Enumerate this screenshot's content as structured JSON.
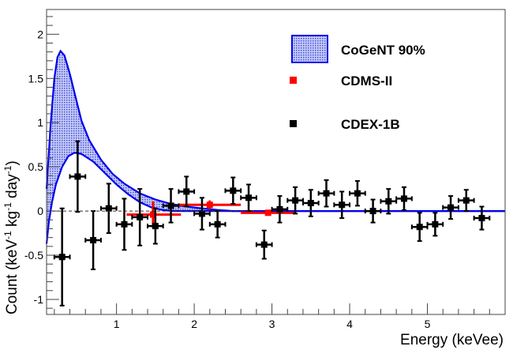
{
  "chart_data": {
    "type": "scatter",
    "title": "",
    "xlabel": "Energy (keVee)",
    "ylabel": "Count (keV-1 kg-1 day-1)",
    "ylabel_parts": {
      "a": "Count (keV",
      "sup1": "-1",
      "b": " kg",
      "sup2": "-1",
      "c": " day",
      "sup3": "-1",
      "d": ")"
    },
    "xlim": [
      0.1,
      6.0
    ],
    "ylim": [
      -1.17,
      2.28
    ],
    "xticks": [
      1,
      2,
      3,
      4,
      5
    ],
    "yticks": [
      -1,
      -0.5,
      0,
      0.5,
      1,
      1.5,
      2
    ],
    "grid": false,
    "legend_placement": "top-right",
    "colors": {
      "cogent": "#0000ee",
      "cdms": "#ff0000",
      "cdex": "#000000"
    },
    "series": [
      {
        "name": "CoGeNT 90%",
        "kind": "band",
        "upper": [
          [
            0.1,
            0.25
          ],
          [
            0.15,
            0.95
          ],
          [
            0.2,
            1.5
          ],
          [
            0.24,
            1.74
          ],
          [
            0.28,
            1.81
          ],
          [
            0.33,
            1.76
          ],
          [
            0.4,
            1.55
          ],
          [
            0.47,
            1.3
          ],
          [
            0.55,
            1.02
          ],
          [
            0.65,
            0.8
          ],
          [
            0.8,
            0.58
          ],
          [
            0.95,
            0.42
          ],
          [
            1.1,
            0.31
          ],
          [
            1.3,
            0.2
          ],
          [
            1.5,
            0.13
          ],
          [
            1.7,
            0.08
          ],
          [
            1.9,
            0.05
          ],
          [
            2.1,
            0.03
          ],
          [
            2.3,
            0.012
          ],
          [
            2.5,
            0.0
          ],
          [
            6.0,
            0.0
          ]
        ],
        "lower": [
          [
            0.1,
            -0.37
          ],
          [
            0.13,
            -0.12
          ],
          [
            0.17,
            0.1
          ],
          [
            0.22,
            0.3
          ],
          [
            0.3,
            0.5
          ],
          [
            0.38,
            0.62
          ],
          [
            0.46,
            0.66
          ],
          [
            0.55,
            0.645
          ],
          [
            0.7,
            0.56
          ],
          [
            0.85,
            0.43
          ],
          [
            1.0,
            0.3
          ],
          [
            1.15,
            0.19
          ],
          [
            1.3,
            0.1
          ],
          [
            1.45,
            0.04
          ],
          [
            1.6,
            0.01
          ],
          [
            1.75,
            0.0
          ],
          [
            6.0,
            0.0
          ]
        ]
      },
      {
        "name": "CDMS-II",
        "kind": "points",
        "points": [
          {
            "x": 1.47,
            "y": -0.04,
            "xlo": 1.13,
            "xhi": 1.83,
            "err": 0.15
          },
          {
            "x": 2.2,
            "y": 0.07,
            "xlo": 1.8,
            "xhi": 2.6,
            "err": 0.05
          },
          {
            "x": 2.95,
            "y": -0.02,
            "xlo": 2.6,
            "xhi": 3.3,
            "err": 0.03
          }
        ]
      },
      {
        "name": "CDEX-1B",
        "kind": "points",
        "xerr": 0.1,
        "points": [
          {
            "x": 0.3,
            "y": -0.52,
            "err": 0.55
          },
          {
            "x": 0.5,
            "y": 0.39,
            "err": 0.4
          },
          {
            "x": 0.7,
            "y": -0.33,
            "err": 0.33
          },
          {
            "x": 0.9,
            "y": 0.03,
            "err": 0.28
          },
          {
            "x": 1.1,
            "y": -0.15,
            "err": 0.29
          },
          {
            "x": 1.3,
            "y": -0.07,
            "err": 0.32
          },
          {
            "x": 1.5,
            "y": -0.17,
            "err": 0.2
          },
          {
            "x": 1.7,
            "y": 0.06,
            "err": 0.19
          },
          {
            "x": 1.9,
            "y": 0.22,
            "err": 0.17
          },
          {
            "x": 2.1,
            "y": -0.03,
            "err": 0.18
          },
          {
            "x": 2.3,
            "y": -0.15,
            "err": 0.15
          },
          {
            "x": 2.5,
            "y": 0.23,
            "err": 0.15
          },
          {
            "x": 2.7,
            "y": 0.15,
            "err": 0.15
          },
          {
            "x": 2.9,
            "y": -0.38,
            "err": 0.16
          },
          {
            "x": 3.1,
            "y": 0.02,
            "err": 0.15
          },
          {
            "x": 3.3,
            "y": 0.12,
            "err": 0.15
          },
          {
            "x": 3.5,
            "y": 0.09,
            "err": 0.15
          },
          {
            "x": 3.7,
            "y": 0.2,
            "err": 0.15
          },
          {
            "x": 3.9,
            "y": 0.07,
            "err": 0.15
          },
          {
            "x": 4.1,
            "y": 0.2,
            "err": 0.14
          },
          {
            "x": 4.3,
            "y": 0.0,
            "err": 0.13
          },
          {
            "x": 4.5,
            "y": 0.11,
            "err": 0.14
          },
          {
            "x": 4.7,
            "y": 0.14,
            "err": 0.13
          },
          {
            "x": 4.9,
            "y": -0.18,
            "err": 0.16
          },
          {
            "x": 5.1,
            "y": -0.15,
            "err": 0.13
          },
          {
            "x": 5.3,
            "y": 0.04,
            "err": 0.13
          },
          {
            "x": 5.5,
            "y": 0.12,
            "err": 0.12
          },
          {
            "x": 5.7,
            "y": -0.08,
            "err": 0.13
          }
        ]
      }
    ],
    "legend": [
      "CoGeNT 90%",
      "CDMS-II",
      "CDEX-1B"
    ]
  }
}
